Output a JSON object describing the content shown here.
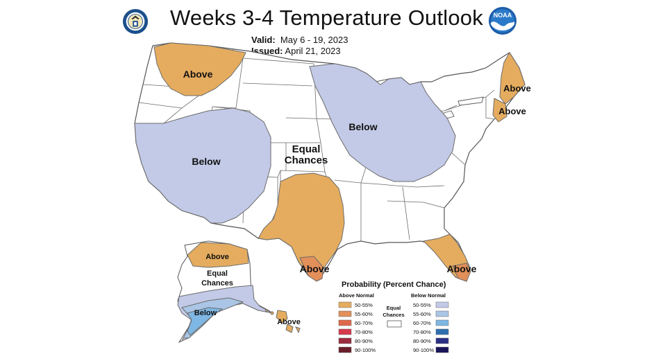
{
  "header": {
    "title": "Weeks 3-4 Temperature Outlook",
    "valid_label": "Valid:",
    "valid_value": "May 6 - 19, 2023",
    "issued_label": "Issued:",
    "issued_value": "April 21, 2023",
    "seal_icon": "department-of-commerce-seal-icon",
    "logo_icon": "noaa-logo-icon",
    "logo_text": "NOAA"
  },
  "colors": {
    "above_50_55": "#e5ac5f",
    "above_55_60": "#e28f5a",
    "above_60_70": "#e0684a",
    "above_70_80": "#d63a4c",
    "above_80_90": "#9c2b3e",
    "above_90_100": "#6a1e29",
    "below_50_55": "#c3cae7",
    "below_55_60": "#aac5e5",
    "below_60_70": "#7fb7e4",
    "below_70_80": "#2f6fb0",
    "below_80_90": "#2c2f86",
    "below_90_100": "#1a1459",
    "equal": "#ffffff",
    "border": "#555555"
  },
  "regions": {
    "pnw_above": "Above",
    "west_below": "Below",
    "central_equal_1": "Equal",
    "central_equal_2": "Chances",
    "midwest_below": "Below",
    "maine_above": "Above",
    "newengland_above": "Above",
    "texas_above": "Above",
    "florida_above": "Above",
    "alaska_above": "Above",
    "alaska_equal_1": "Equal",
    "alaska_equal_2": "Chances",
    "alaska_below": "Below",
    "hawaii_above": "Above"
  },
  "legend": {
    "title": "Probability (Percent Chance)",
    "above_header": "Above Normal",
    "below_header": "Below Normal",
    "equal_label_1": "Equal",
    "equal_label_2": "Chances",
    "rows": [
      {
        "label": "50-55%",
        "above_color": "#e5ac5f",
        "below_color": "#c3cae7"
      },
      {
        "label": "55-60%",
        "above_color": "#e28f5a",
        "below_color": "#aac5e5"
      },
      {
        "label": "60-70%",
        "above_color": "#e0684a",
        "below_color": "#7fb7e4"
      },
      {
        "label": "70-80%",
        "above_color": "#d63a4c",
        "below_color": "#2f6fb0"
      },
      {
        "label": "80-90%",
        "above_color": "#9c2b3e",
        "below_color": "#2c2f86"
      },
      {
        "label": "90-100%",
        "above_color": "#6a1e29",
        "below_color": "#1a1459"
      }
    ]
  }
}
